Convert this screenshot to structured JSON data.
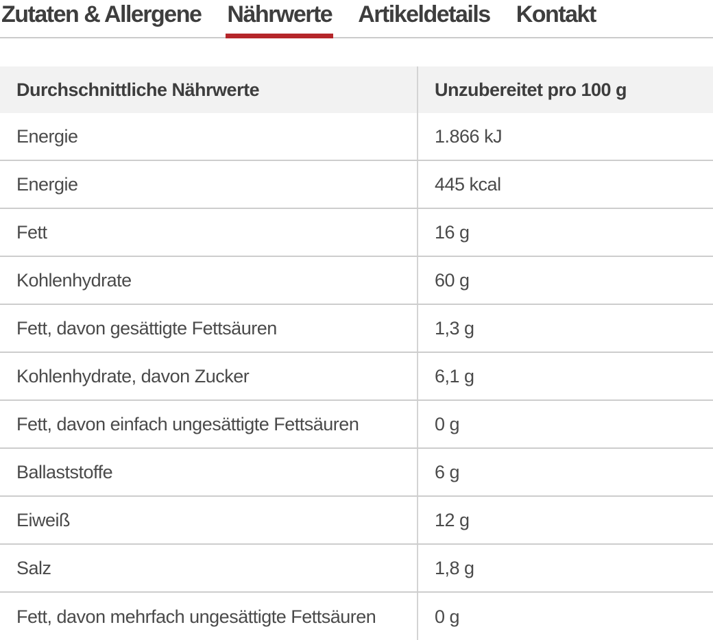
{
  "colors": {
    "accent_red": "#b5262a",
    "tab_text": "#3e3e3e",
    "header_bg": "#f2f2f2",
    "tab_underline_gray": "#cbcbcb",
    "row_divider": "#cdcdcd",
    "column_divider": "#d4d4d4"
  },
  "tabs": [
    {
      "label": "Zutaten & Allergene",
      "active": false
    },
    {
      "label": "Nährwerte",
      "active": true
    },
    {
      "label": "Artikeldetails",
      "active": false
    },
    {
      "label": "Kontakt",
      "active": false
    }
  ],
  "nutrition_table": {
    "columns": [
      "Durchschnittliche Nährwerte",
      "Unzubereitet pro 100 g"
    ],
    "rows": [
      {
        "label": "Energie",
        "value": "1.866 kJ"
      },
      {
        "label": "Energie",
        "value": "445 kcal"
      },
      {
        "label": "Fett",
        "value": "16 g"
      },
      {
        "label": "Kohlenhydrate",
        "value": "60 g"
      },
      {
        "label": "Fett, davon gesättigte Fettsäuren",
        "value": "1,3 g"
      },
      {
        "label": "Kohlenhydrate, davon Zucker",
        "value": "6,1 g"
      },
      {
        "label": "Fett, davon einfach ungesättigte Fettsäuren",
        "value": "0 g"
      },
      {
        "label": "Ballaststoffe",
        "value": "6 g"
      },
      {
        "label": "Eiweiß",
        "value": "12 g"
      },
      {
        "label": "Salz",
        "value": "1,8 g"
      },
      {
        "label": "Fett, davon mehrfach ungesättigte Fettsäuren",
        "value": "0 g"
      }
    ]
  }
}
